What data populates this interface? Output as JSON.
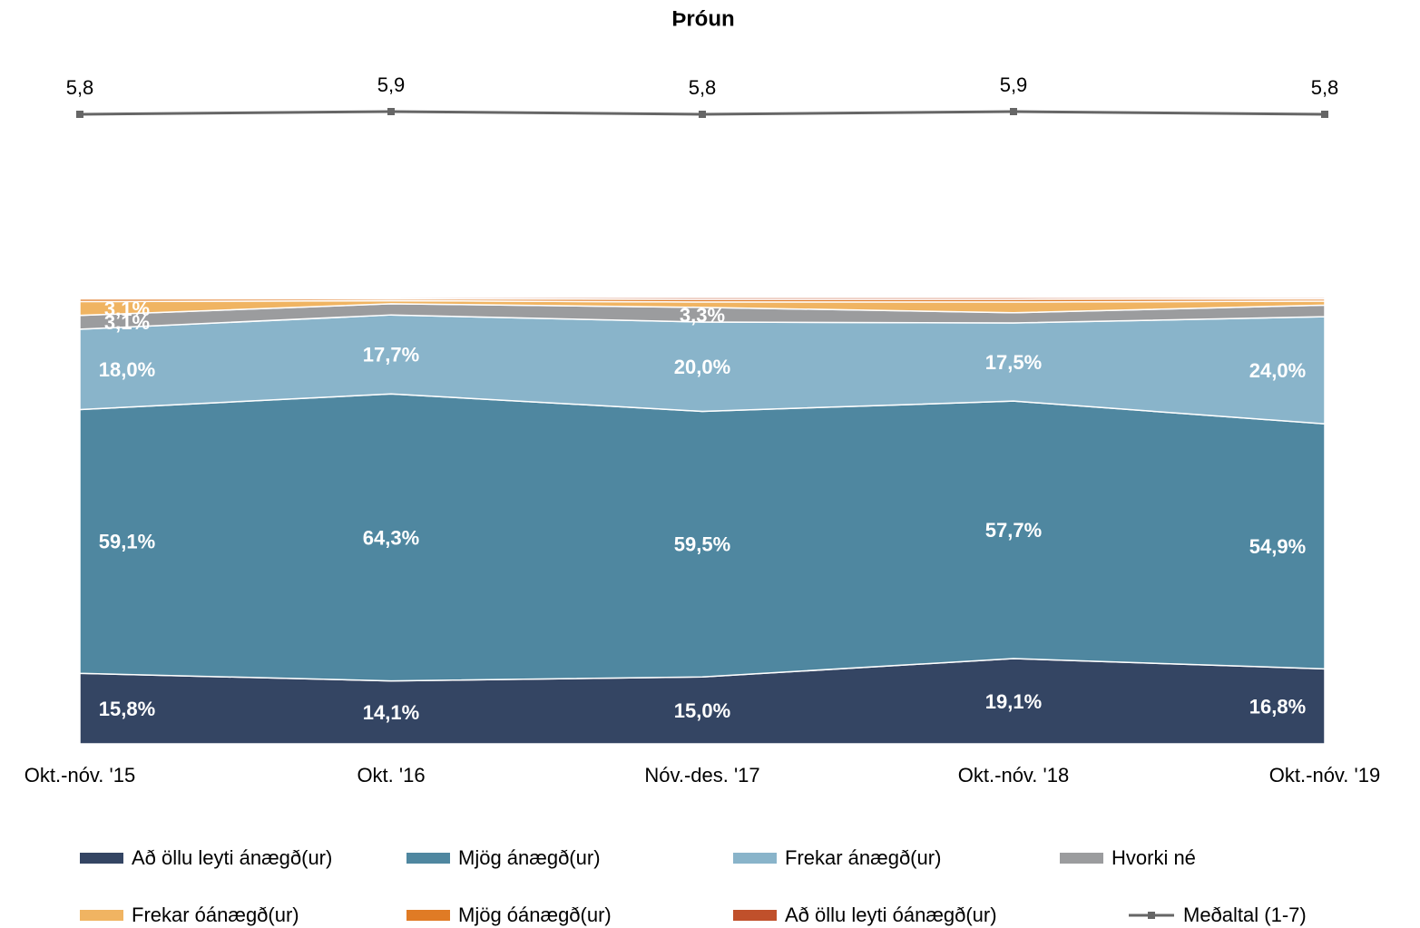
{
  "chart_data": {
    "type": "area",
    "stacked": true,
    "title": "Þróun",
    "categories": [
      "Okt.-nóv. '15",
      "Okt. '16",
      "Nóv.-des. '17",
      "Okt.-nóv. '18",
      "Okt.-nóv. '19"
    ],
    "ylim": [
      0,
      100
    ],
    "y2lim": [
      5,
      7
    ],
    "grid": false,
    "legend": "bottom",
    "series": [
      {
        "name": "Að öllu leyti ánægð(ur)",
        "color": "#344563",
        "values": [
          15.8,
          14.1,
          15.0,
          19.1,
          16.8
        ],
        "value_labels": [
          "15,8%",
          "14,1%",
          "15,0%",
          "19,1%",
          "16,8%"
        ]
      },
      {
        "name": "Mjög ánægð(ur)",
        "color": "#4f87a0",
        "values": [
          59.1,
          64.3,
          59.5,
          57.7,
          54.9
        ],
        "value_labels": [
          "59,1%",
          "64,3%",
          "59,5%",
          "57,7%",
          "54,9%"
        ]
      },
      {
        "name": "Frekar ánægð(ur)",
        "color": "#89b4ca",
        "values": [
          18.0,
          17.7,
          20.0,
          17.5,
          24.0
        ],
        "value_labels": [
          "18,0%",
          "17,7%",
          "20,0%",
          "17,5%",
          "24,0%"
        ]
      },
      {
        "name": "Hvorki né",
        "color": "#9b9c9e",
        "values": [
          3.1,
          2.5,
          3.3,
          2.3,
          2.6
        ],
        "value_labels": [
          "3,1%",
          null,
          "3,3%",
          null,
          null
        ]
      },
      {
        "name": "Frekar óánægð(ur)",
        "color": "#f0b462",
        "values": [
          3.1,
          0.7,
          1.2,
          2.4,
          0.9
        ],
        "value_labels": [
          "3,1%",
          null,
          null,
          null,
          null
        ]
      },
      {
        "name": "Mjög óánægð(ur)",
        "color": "#e07b25",
        "values": [
          0.6,
          0.4,
          0.6,
          0.6,
          0.5
        ]
      },
      {
        "name": "Að öllu leyti óánægð(ur)",
        "color": "#c0502b",
        "values": [
          0.3,
          0.3,
          0.4,
          0.4,
          0.3
        ]
      },
      {
        "name": "Meðaltal (1-7)",
        "type": "line",
        "axis": "y2",
        "color": "#666666",
        "values": [
          5.8,
          5.9,
          5.8,
          5.9,
          5.8
        ],
        "value_labels": [
          "5,8",
          "5,9",
          "5,8",
          "5,9",
          "5,8"
        ]
      }
    ]
  }
}
